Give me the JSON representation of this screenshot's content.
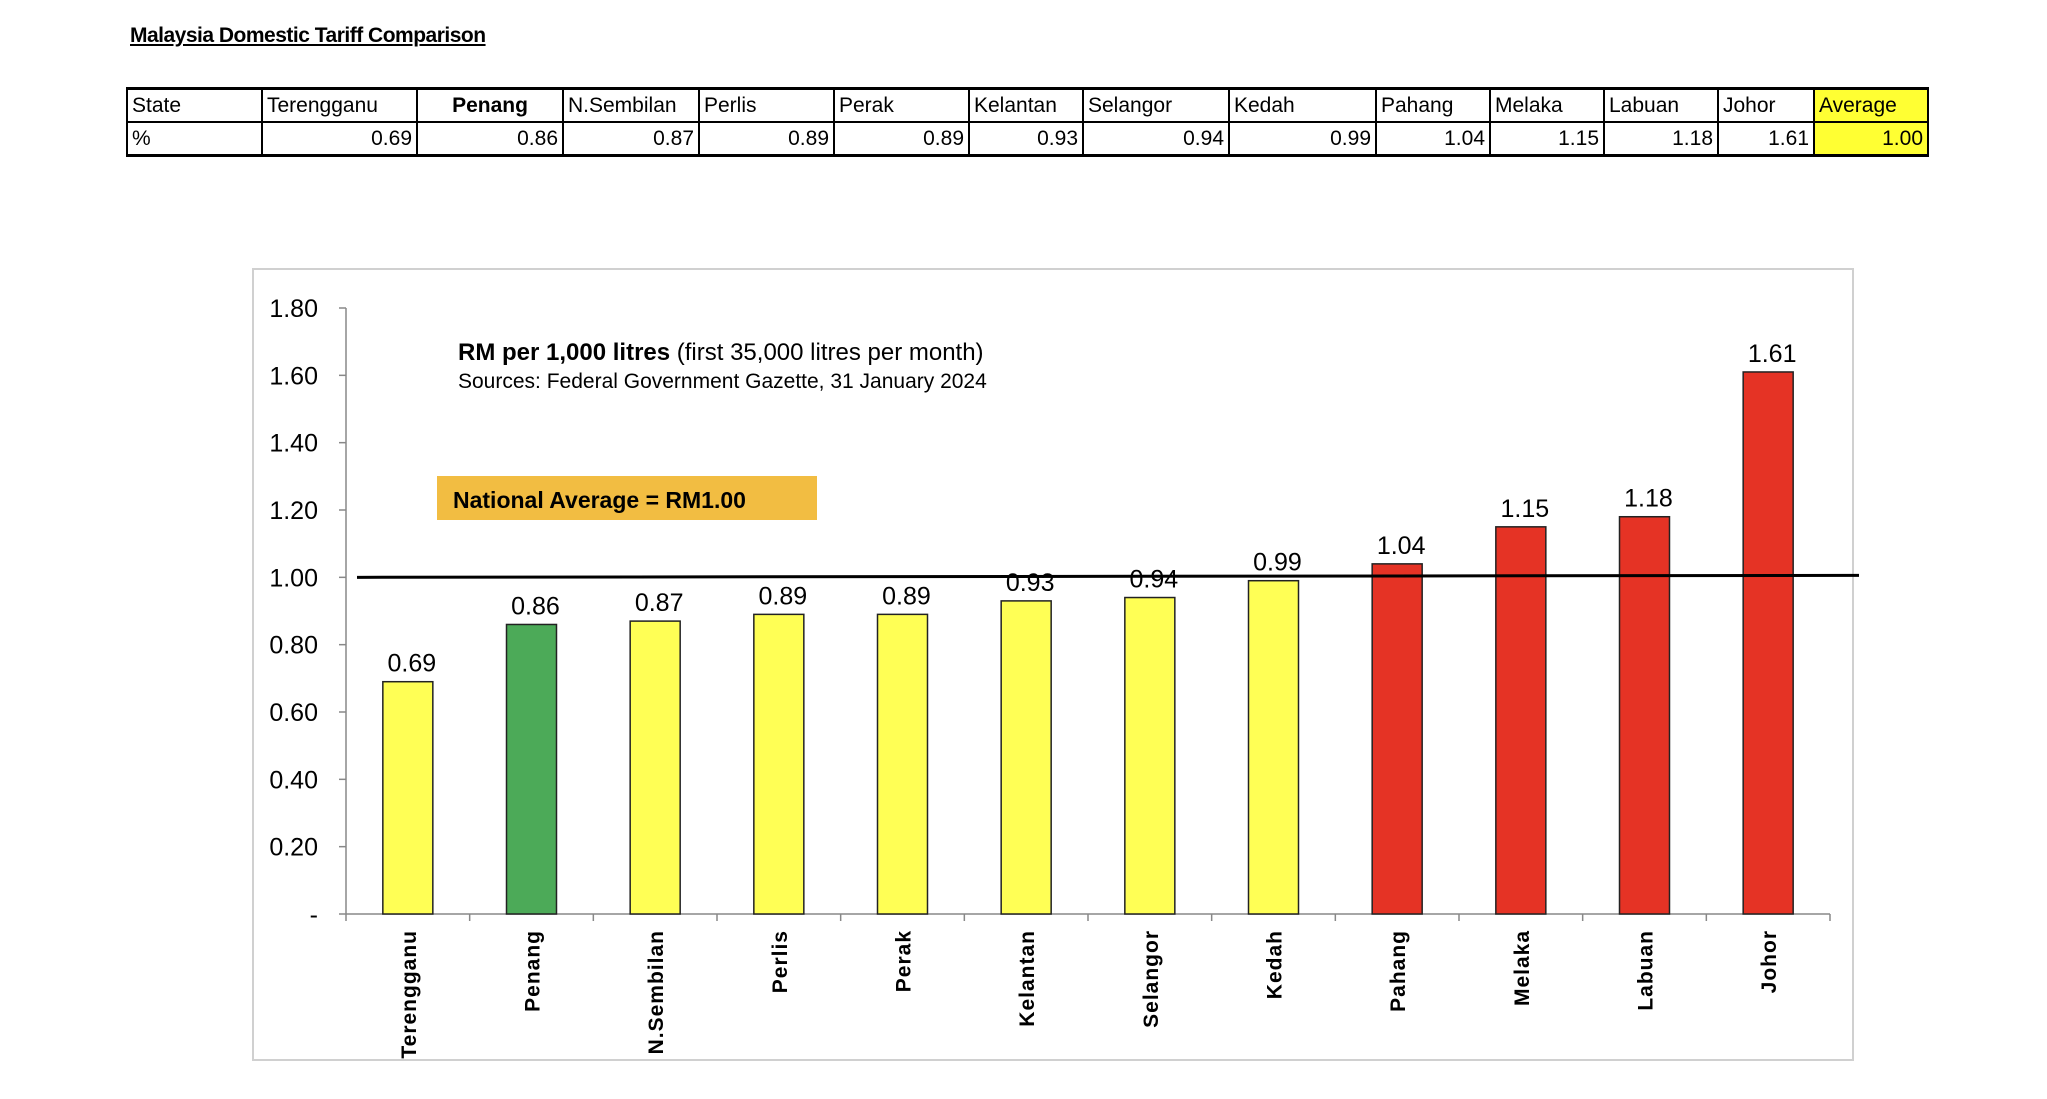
{
  "document": {
    "title": "Malaysia Domestic Tariff Comparison"
  },
  "table": {
    "row_header_state": "State",
    "row_header_value": "%",
    "states": [
      "Terengganu",
      "Penang",
      "N.Sembilan",
      "Perlis",
      "Perak",
      "Kelantan",
      "Selangor",
      "Kedah",
      "Pahang",
      "Melaka",
      "Labuan",
      "Johor",
      "Average"
    ],
    "values": [
      "0.69",
      "0.86",
      "0.87",
      "0.89",
      "0.89",
      "0.93",
      "0.94",
      "0.99",
      "1.04",
      "1.15",
      "1.18",
      "1.61",
      "1.00"
    ],
    "highlight_color": "#ffff33"
  },
  "chart_data": {
    "type": "bar",
    "title": "RM per 1,000 litres",
    "title_suffix": "(first 35,000 litres per month)",
    "subtitle": "Sources: Federal Government Gazette, 31 January 2024",
    "annotation": "National Average = RM1.00",
    "reference_line": 1.0,
    "categories": [
      "Terengganu",
      "Penang",
      "N.Sembilan",
      "Perlis",
      "Perak",
      "Kelantan",
      "Selangor",
      "Kedah",
      "Pahang",
      "Melaka",
      "Labuan",
      "Johor"
    ],
    "values": [
      0.69,
      0.86,
      0.87,
      0.89,
      0.89,
      0.93,
      0.94,
      0.99,
      1.04,
      1.15,
      1.18,
      1.61
    ],
    "value_labels": [
      "0.69",
      "0.86",
      "0.87",
      "0.89",
      "0.89",
      "0.93",
      "0.94",
      "0.99",
      "1.04",
      "1.15",
      "1.18",
      "1.61"
    ],
    "bar_colors": [
      "#ffff55",
      "#4caa58",
      "#ffff55",
      "#ffff55",
      "#ffff55",
      "#ffff55",
      "#ffff55",
      "#ffff55",
      "#e53325",
      "#e53325",
      "#e53325",
      "#e53325"
    ],
    "ylim": [
      0,
      1.8
    ],
    "yticks": [
      0,
      0.2,
      0.4,
      0.6,
      0.8,
      1.0,
      1.2,
      1.4,
      1.6,
      1.8
    ],
    "ytick_labels": [
      "-",
      "0.20",
      "0.40",
      "0.60",
      "0.80",
      "1.00",
      "1.20",
      "1.40",
      "1.60",
      "1.80"
    ],
    "xlabel": "",
    "ylabel": "",
    "grid": false,
    "annotation_color": "#f2bd42"
  }
}
